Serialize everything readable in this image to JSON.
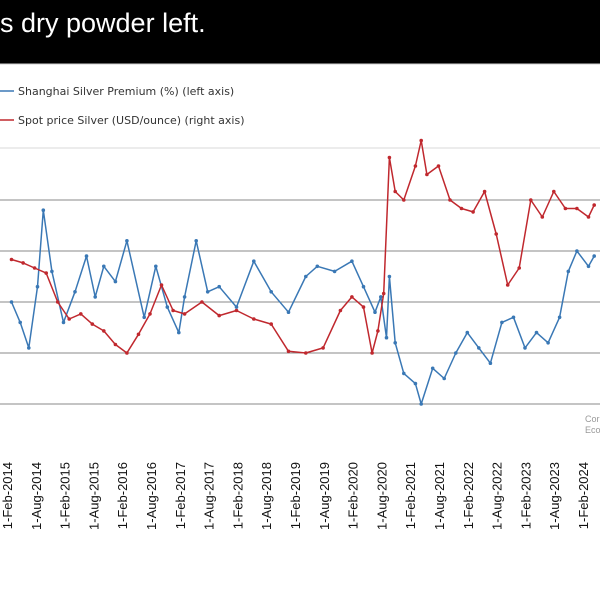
{
  "header": {
    "text": "s dry powder left."
  },
  "watermark": {
    "line1": "Cor",
    "line2": "Eco"
  },
  "chart_data": {
    "type": "line",
    "title": "",
    "xlabel": "",
    "ylabel": "",
    "legend_placement": "top-left",
    "grid": true,
    "x_tick_labels": [
      "1-Feb-2014",
      "1-Aug-2014",
      "1-Feb-2015",
      "1-Aug-2015",
      "1-Feb-2016",
      "1-Aug-2016",
      "1-Feb-2017",
      "1-Aug-2017",
      "1-Feb-2018",
      "1-Aug-2018",
      "1-Feb-2019",
      "1-Aug-2019",
      "1-Feb-2020",
      "1-Aug-2020",
      "1-Feb-2021",
      "1-Aug-2021",
      "1-Feb-2022",
      "1-Aug-2022",
      "1-Feb-2023",
      "1-Aug-2023",
      "1-Feb-2024"
    ],
    "colors": {
      "premium": "#3a78b5",
      "spot": "#c0282e",
      "grid": "#8a8a8a"
    },
    "series": [
      {
        "name": "Shanghai Silver Premium (%) (left axis)",
        "axis": "left",
        "x": [
          2014.0,
          2014.15,
          2014.3,
          2014.45,
          2014.55,
          2014.7,
          2014.9,
          2015.1,
          2015.3,
          2015.45,
          2015.6,
          2015.8,
          2016.0,
          2016.3,
          2016.5,
          2016.7,
          2016.9,
          2017.0,
          2017.2,
          2017.4,
          2017.6,
          2017.9,
          2018.2,
          2018.5,
          2018.8,
          2019.1,
          2019.3,
          2019.6,
          2019.9,
          2020.1,
          2020.3,
          2020.4,
          2020.5,
          2020.55,
          2020.65,
          2020.8,
          2021.0,
          2021.1,
          2021.3,
          2021.5,
          2021.7,
          2021.9,
          2022.1,
          2022.3,
          2022.5,
          2022.7,
          2022.9,
          2023.1,
          2023.3,
          2023.5,
          2023.65,
          2023.8,
          2024.0,
          2024.1
        ],
        "values": [
          0.0,
          -0.4,
          -0.9,
          0.3,
          1.8,
          0.6,
          -0.4,
          0.2,
          0.9,
          0.1,
          0.7,
          0.4,
          1.2,
          -0.3,
          0.7,
          -0.1,
          -0.6,
          0.1,
          1.2,
          0.2,
          0.3,
          -0.1,
          0.8,
          0.2,
          -0.2,
          0.5,
          0.7,
          0.6,
          0.8,
          0.3,
          -0.2,
          0.1,
          -0.7,
          0.5,
          -0.8,
          -1.4,
          -1.6,
          -2.0,
          -1.3,
          -1.5,
          -1.0,
          -0.6,
          -0.9,
          -1.2,
          -0.4,
          -0.3,
          -0.9,
          -0.6,
          -0.8,
          -0.3,
          0.6,
          1.0,
          0.7,
          0.9
        ]
      },
      {
        "name": "Spot price Silver (USD/ounce) (right axis)",
        "axis": "right",
        "x": [
          2014.0,
          2014.2,
          2014.4,
          2014.6,
          2014.8,
          2015.0,
          2015.2,
          2015.4,
          2015.6,
          2015.8,
          2016.0,
          2016.2,
          2016.4,
          2016.6,
          2016.8,
          2017.0,
          2017.3,
          2017.6,
          2017.9,
          2018.2,
          2018.5,
          2018.8,
          2019.1,
          2019.4,
          2019.7,
          2019.9,
          2020.1,
          2020.25,
          2020.35,
          2020.45,
          2020.55,
          2020.65,
          2020.8,
          2021.0,
          2021.1,
          2021.2,
          2021.4,
          2021.6,
          2021.8,
          2022.0,
          2022.2,
          2022.4,
          2022.6,
          2022.8,
          2023.0,
          2023.2,
          2023.4,
          2023.6,
          2023.8,
          2024.0,
          2024.1
        ],
        "values": [
          20.0,
          19.8,
          19.5,
          19.2,
          17.5,
          16.5,
          16.8,
          16.2,
          15.8,
          15.0,
          14.5,
          15.6,
          16.8,
          18.5,
          17.0,
          16.8,
          17.5,
          16.7,
          17.0,
          16.5,
          16.2,
          14.6,
          14.5,
          14.8,
          17.0,
          17.8,
          17.2,
          14.5,
          15.8,
          18.0,
          26.0,
          24.0,
          23.5,
          25.5,
          27.0,
          25.0,
          25.5,
          23.5,
          23.0,
          22.8,
          24.0,
          21.5,
          18.5,
          19.5,
          23.5,
          22.5,
          24.0,
          23.0,
          23.0,
          22.5,
          23.2
        ]
      }
    ]
  }
}
